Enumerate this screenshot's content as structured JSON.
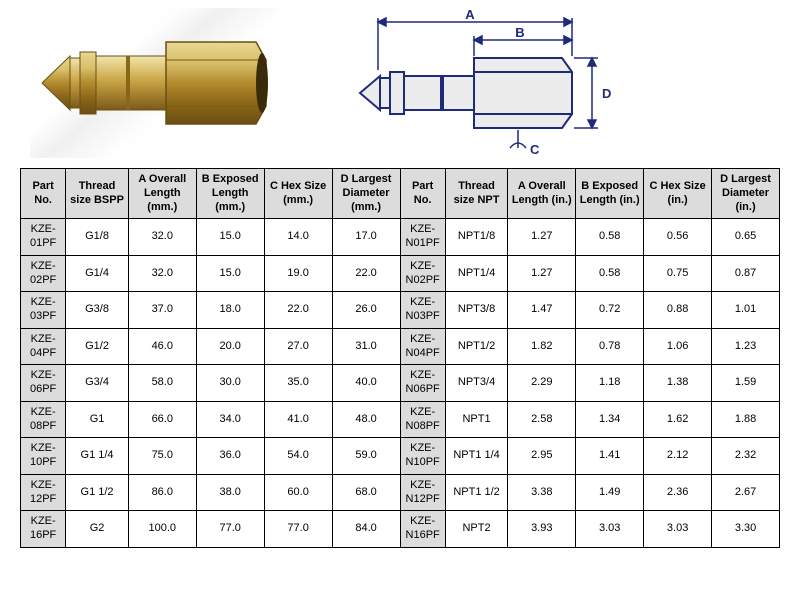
{
  "diagram_labels": {
    "A": "A",
    "B": "B",
    "C": "C",
    "D": "D"
  },
  "headers_mm": {
    "part": "Part No.",
    "thread": "Thread size BSPP",
    "A": "A Overall Length (mm.)",
    "B": "B Exposed Length (mm.)",
    "C": "C Hex Size (mm.)",
    "D": "D Largest Diameter (mm.)"
  },
  "headers_in": {
    "part": "Part No.",
    "thread": "Thread size NPT",
    "A": "A Overall Length (in.)",
    "B": "B Exposed Length (in.)",
    "C": "C Hex Size (in.)",
    "D": "D Largest Diameter (in.)"
  },
  "rows": [
    {
      "mm": {
        "part": "KZE-01PF",
        "thread": "G1/8",
        "A": "32.0",
        "B": "15.0",
        "C": "14.0",
        "D": "17.0"
      },
      "in": {
        "part": "KZE-N01PF",
        "thread": "NPT1/8",
        "A": "1.27",
        "B": "0.58",
        "C": "0.56",
        "D": "0.65"
      }
    },
    {
      "mm": {
        "part": "KZE-02PF",
        "thread": "G1/4",
        "A": "32.0",
        "B": "15.0",
        "C": "19.0",
        "D": "22.0"
      },
      "in": {
        "part": "KZE-N02PF",
        "thread": "NPT1/4",
        "A": "1.27",
        "B": "0.58",
        "C": "0.75",
        "D": "0.87"
      }
    },
    {
      "mm": {
        "part": "KZE-03PF",
        "thread": "G3/8",
        "A": "37.0",
        "B": "18.0",
        "C": "22.0",
        "D": "26.0"
      },
      "in": {
        "part": "KZE-N03PF",
        "thread": "NPT3/8",
        "A": "1.47",
        "B": "0.72",
        "C": "0.88",
        "D": "1.01"
      }
    },
    {
      "mm": {
        "part": "KZE-04PF",
        "thread": "G1/2",
        "A": "46.0",
        "B": "20.0",
        "C": "27.0",
        "D": "31.0"
      },
      "in": {
        "part": "KZE-N04PF",
        "thread": "NPT1/2",
        "A": "1.82",
        "B": "0.78",
        "C": "1.06",
        "D": "1.23"
      }
    },
    {
      "mm": {
        "part": "KZE-06PF",
        "thread": "G3/4",
        "A": "58.0",
        "B": "30.0",
        "C": "35.0",
        "D": "40.0"
      },
      "in": {
        "part": "KZE-N06PF",
        "thread": "NPT3/4",
        "A": "2.29",
        "B": "1.18",
        "C": "1.38",
        "D": "1.59"
      }
    },
    {
      "mm": {
        "part": "KZE-08PF",
        "thread": "G1",
        "A": "66.0",
        "B": "34.0",
        "C": "41.0",
        "D": "48.0"
      },
      "in": {
        "part": "KZE-N08PF",
        "thread": "NPT1",
        "A": "2.58",
        "B": "1.34",
        "C": "1.62",
        "D": "1.88"
      }
    },
    {
      "mm": {
        "part": "KZE-10PF",
        "thread": "G1 1/4",
        "A": "75.0",
        "B": "36.0",
        "C": "54.0",
        "D": "59.0"
      },
      "in": {
        "part": "KZE-N10PF",
        "thread": "NPT1 1/4",
        "A": "2.95",
        "B": "1.41",
        "C": "2.12",
        "D": "2.32"
      }
    },
    {
      "mm": {
        "part": "KZE-12PF",
        "thread": "G1 1/2",
        "A": "86.0",
        "B": "38.0",
        "C": "60.0",
        "D": "68.0"
      },
      "in": {
        "part": "KZE-N12PF",
        "thread": "NPT1 1/2",
        "A": "3.38",
        "B": "1.49",
        "C": "2.36",
        "D": "2.67"
      }
    },
    {
      "mm": {
        "part": "KZE-16PF",
        "thread": "G2",
        "A": "100.0",
        "B": "77.0",
        "C": "77.0",
        "D": "84.0"
      },
      "in": {
        "part": "KZE-N16PF",
        "thread": "NPT2",
        "A": "3.93",
        "B": "3.03",
        "C": "3.03",
        "D": "3.30"
      }
    }
  ],
  "colors": {
    "brass_light": "#d8c06a",
    "brass_mid": "#c4a040",
    "brass_dark": "#7a5a1a",
    "diagram_fill": "#ececec",
    "diagram_stroke": "#1e2a7a"
  }
}
